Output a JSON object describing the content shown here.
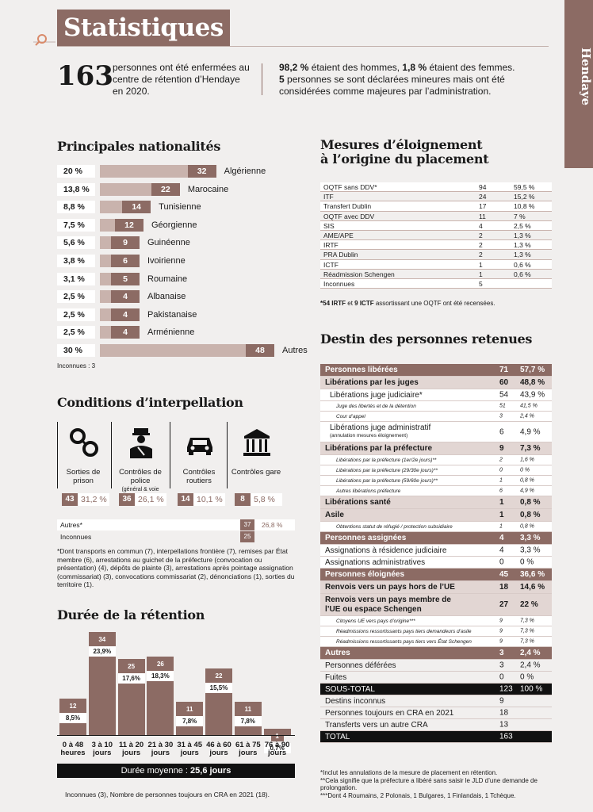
{
  "header": {
    "title": "Statistiques",
    "side_tab": "Hendaye",
    "big_number": "163",
    "intro": "personnes ont été enfermées au centre de rétention d’Hendaye en 2020.",
    "stat1_value": "98,2 %",
    "stat1_text": " étaient des hommes, ",
    "stat2_value": "1,8 %",
    "stat2_text": " étaient des femmes.",
    "stat3_value": "5",
    "stat3_text": " personnes se sont déclarées mineures mais ont été considérées comme majeures par l’administration."
  },
  "nationalities": {
    "title": "Principales nationalités",
    "rows": [
      {
        "pct": "20 %",
        "count": "32",
        "name": "Algérienne"
      },
      {
        "pct": "13,8 %",
        "count": "22",
        "name": "Marocaine"
      },
      {
        "pct": "8,8 %",
        "count": "14",
        "name": "Tunisienne"
      },
      {
        "pct": "7,5 %",
        "count": "12",
        "name": "Géorgienne"
      },
      {
        "pct": "5,6 %",
        "count": "9",
        "name": "Guinéenne"
      },
      {
        "pct": "3,8 %",
        "count": "6",
        "name": "Ivoirienne"
      },
      {
        "pct": "3,1 %",
        "count": "5",
        "name": "Roumaine"
      },
      {
        "pct": "2,5 %",
        "count": "4",
        "name": "Albanaise"
      },
      {
        "pct": "2,5 %",
        "count": "4",
        "name": "Pakistanaise"
      },
      {
        "pct": "2,5 %",
        "count": "4",
        "name": "Arménienne"
      },
      {
        "pct": "30 %",
        "count": "48",
        "name": "Autres"
      }
    ],
    "note": "Inconnues : 3"
  },
  "conditions": {
    "title": "Conditions d’interpellation",
    "columns": [
      {
        "icon": "handcuffs-icon",
        "label": "Sorties de prison",
        "sub": "",
        "count": "43",
        "pct": "31,2 %"
      },
      {
        "icon": "police-officer-icon",
        "label": "Contrôles de police",
        "sub": "(général & voie publique)",
        "count": "36",
        "pct": "26,1 %"
      },
      {
        "icon": "car-icon",
        "label": "Contrôles routiers",
        "sub": "",
        "count": "14",
        "pct": "10,1 %"
      },
      {
        "icon": "train-station-icon",
        "label": "Contrôles gare",
        "sub": "",
        "count": "8",
        "pct": "5,8 %"
      }
    ],
    "others_label": "Autres*",
    "others_count": "37",
    "others_pct": "26,8 %",
    "unknown_label": "Inconnues",
    "unknown_count": "25",
    "footnote": "*Dont transports en commun (7), interpellations frontière (7), remises par État membre (6), arrestations au guichet de la préfecture (convocation ou présentation) (4), dépôts de plainte (3), arrestations après pointage assignation (commissariat) (3), convocations commissariat (2), dénonciations (1), sorties du territoire (1)."
  },
  "duration": {
    "title": "Durée de la rétention",
    "average_label": "Durée moyenne : ",
    "average_value": "25,6 jours",
    "footnote": "Inconnues (3), Nombre de personnes toujours en CRA en 2021 (18)."
  },
  "chart_data": {
    "type": "bar",
    "title": "Durée de la rétention",
    "categories": [
      "0 à 48 heures",
      "3 à 10 jours",
      "11 à 20 jours",
      "21 à 30 jours",
      "31 à 45 jours",
      "46 à 60 jours",
      "61 à 75 jours",
      "76 à 90 jours"
    ],
    "cat_line1": [
      "0 à 48",
      "3 à 10",
      "11 à 20",
      "21 à 30",
      "31 à 45",
      "46 à 60",
      "61 à 75",
      "76 à 90"
    ],
    "cat_line2": [
      "heures",
      "jours",
      "jours",
      "jours",
      "jours",
      "jours",
      "jours",
      "jours"
    ],
    "values": [
      12,
      34,
      25,
      26,
      11,
      22,
      11,
      1
    ],
    "percent_labels": [
      "8,5%",
      "23,9%",
      "17,6%",
      "18,3%",
      "7,8%",
      "15,5%",
      "7,8%",
      "0,7%"
    ],
    "ylim": [
      0,
      36
    ]
  },
  "mesures": {
    "title_line1": "Mesures d’éloignement",
    "title_line2": "à l’origine du placement",
    "rows": [
      {
        "label": "OQTF sans DDV*",
        "count": "94",
        "pct": "59,5 %"
      },
      {
        "label": "ITF",
        "count": "24",
        "pct": "15,2 %"
      },
      {
        "label": "Transfert Dublin",
        "count": "17",
        "pct": "10,8 %"
      },
      {
        "label": "OQTF avec DDV",
        "count": "11",
        "pct": "7 %"
      },
      {
        "label": "SIS",
        "count": "4",
        "pct": "2,5 %"
      },
      {
        "label": "AME/APE",
        "count": "2",
        "pct": "1,3 %"
      },
      {
        "label": "IRTF",
        "count": "2",
        "pct": "1,3 %"
      },
      {
        "label": "PRA Dublin",
        "count": "2",
        "pct": "1,3 %"
      },
      {
        "label": "ICTF",
        "count": "1",
        "pct": "0,6 %"
      },
      {
        "label": "Réadmission Schengen",
        "count": "1",
        "pct": "0,6 %"
      },
      {
        "label": "Inconnues",
        "count": "5",
        "pct": ""
      }
    ],
    "note_b1": "*54 IRTF",
    "note_mid": " et ",
    "note_b2": "9 ICTF",
    "note_end": " assortissant une OQTF ont été recensées."
  },
  "destin": {
    "title": "Destin des personnes retenues",
    "rows": [
      {
        "type": "hd",
        "label": "Personnes libérées",
        "v1": "71",
        "v2": "57,7 %"
      },
      {
        "type": "sub",
        "label": "Libérations par les juges",
        "v1": "60",
        "v2": "48,8 %"
      },
      {
        "type": "l1",
        "label": "Libérations juge judiciaire*",
        "v1": "54",
        "v2": "43,9 %"
      },
      {
        "type": "l2",
        "label": "Juge des libertés et de la détention",
        "v1": "51",
        "v2": "41,5 %"
      },
      {
        "type": "l2",
        "label": "Cour d’appel",
        "v1": "3",
        "v2": "2,4 %"
      },
      {
        "type": "l1big",
        "label": "Libérations juge administratif",
        "sub": "(annulation mesures éloignement)",
        "v1": "6",
        "v2": "4,9 %"
      },
      {
        "type": "sub",
        "label": "Libérations par la préfecture",
        "v1": "9",
        "v2": "7,3 %"
      },
      {
        "type": "l2",
        "label": "Libérations par la préfecture (1er/2e jours)**",
        "v1": "2",
        "v2": "1,6 %"
      },
      {
        "type": "l2",
        "label": "Libérations par la préfecture (29/30e jours)**",
        "v1": "0",
        "v2": "0 %"
      },
      {
        "type": "l2",
        "label": "Libérations par la préfecture (59/60e jours)**",
        "v1": "1",
        "v2": "0,8 %"
      },
      {
        "type": "l2",
        "label": "Autres libérations préfecture",
        "v1": "6",
        "v2": "4,9 %"
      },
      {
        "type": "sub",
        "label": "Libérations santé",
        "v1": "1",
        "v2": "0,8 %"
      },
      {
        "type": "sub",
        "label": "Asile",
        "v1": "1",
        "v2": "0,8 %"
      },
      {
        "type": "l2",
        "label": "Obtentions statut de réfugié / protection subsidiaire",
        "v1": "1",
        "v2": "0,8 %"
      },
      {
        "type": "hd",
        "label": "Personnes assignées",
        "v1": "4",
        "v2": "3,3 %"
      },
      {
        "type": "l1b",
        "label": "Assignations à résidence judiciaire",
        "v1": "4",
        "v2": "3,3 %"
      },
      {
        "type": "l1b",
        "label": "Assignations administratives",
        "v1": "0",
        "v2": "0 %"
      },
      {
        "type": "hd",
        "label": "Personnes éloignées",
        "v1": "45",
        "v2": "36,6 %"
      },
      {
        "type": "sub",
        "label": "Renvois vers un pays hors de l’UE",
        "v1": "18",
        "v2": "14,6 %"
      },
      {
        "type": "sub2",
        "label": "Renvois vers un pays membre de l’UE ou espace Schengen",
        "v1": "27",
        "v2": "22 %"
      },
      {
        "type": "l2",
        "label": "Citoyens UE vers pays d’origine***",
        "v1": "9",
        "v2": "7,3 %"
      },
      {
        "type": "l2",
        "label": "Réadmissions ressortissants pays tiers demandeurs d’asile vers État UE",
        "v1": "9",
        "v2": "7,3 %"
      },
      {
        "type": "l2",
        "label": "Réadmissions ressortissants pays tiers vers État Schengen",
        "v1": "9",
        "v2": "7,3 %"
      },
      {
        "type": "hd",
        "label": "Autres",
        "v1": "3",
        "v2": "2,4 %"
      },
      {
        "type": "plain",
        "label": "Personnes déférées",
        "v1": "3",
        "v2": "2,4 %"
      },
      {
        "type": "plain",
        "label": "Fuites",
        "v1": "0",
        "v2": "0 %"
      },
      {
        "type": "black",
        "label": "SOUS-TOTAL",
        "v1": "123",
        "v2": "100 %"
      },
      {
        "type": "plain",
        "label": "Destins inconnus",
        "v1": "9",
        "v2": ""
      },
      {
        "type": "plain",
        "label": "Personnes toujours en CRA en 2021",
        "v1": "18",
        "v2": ""
      },
      {
        "type": "plain",
        "label": "Transferts vers un autre CRA",
        "v1": "13",
        "v2": ""
      },
      {
        "type": "black",
        "label": "TOTAL",
        "v1": "163",
        "v2": ""
      }
    ],
    "footnotes": [
      "*Inclut les annulations de la mesure de placement en rétention.",
      "**Cela signifie que la préfecture a libéré sans saisir le JLD d’une demande de prolongation.",
      "***Dont 4 Roumains, 2 Polonais, 1 Bulgares, 1 Finlandais, 1 Tchèque."
    ]
  }
}
